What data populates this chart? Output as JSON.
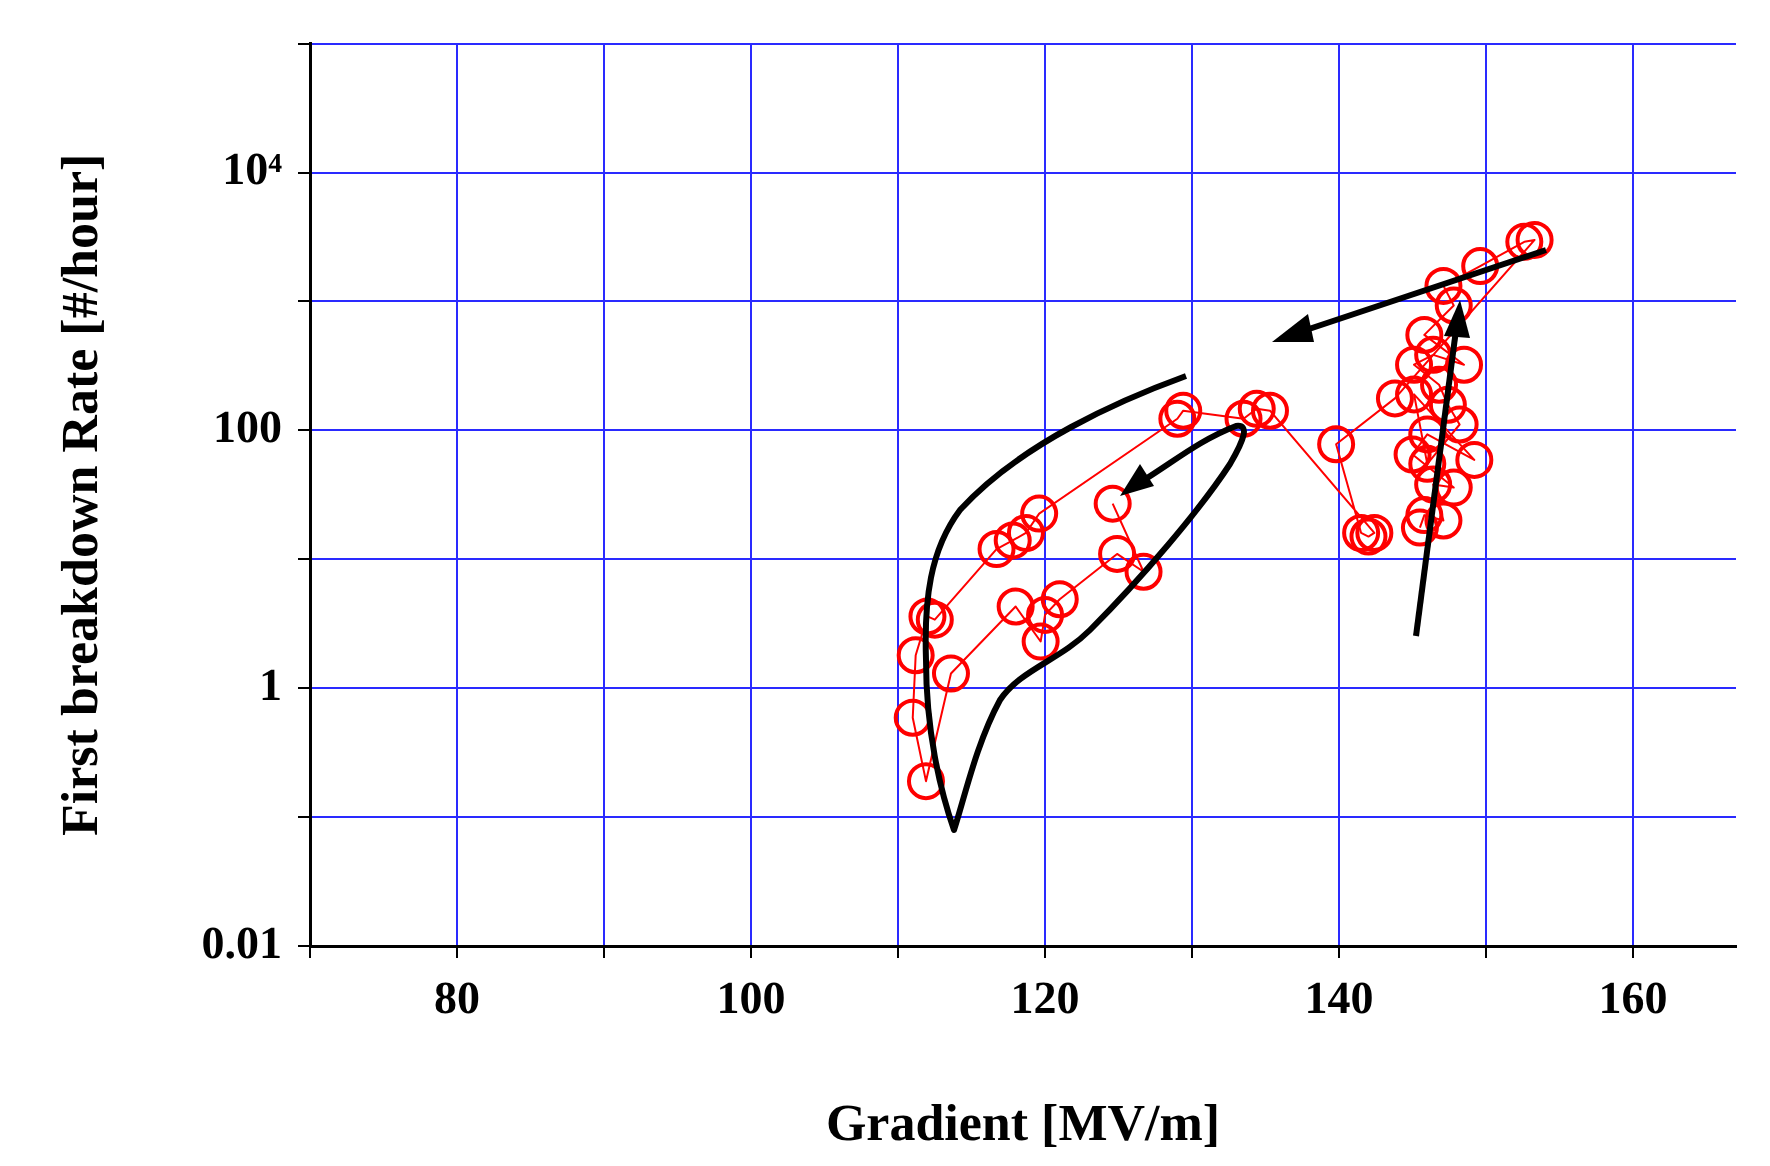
{
  "chart_data": {
    "type": "line",
    "xlabel": "Gradient [MV/m]",
    "ylabel": "First breakdown Rate [#/hour]",
    "xlim": [
      70,
      167
    ],
    "ylim": [
      0.01,
      100000
    ],
    "log": "y",
    "grid": true,
    "legend": false,
    "marker": "circle",
    "line_style": "solid",
    "xticks": [
      {
        "value": 70,
        "label": null
      },
      80,
      {
        "value": 90,
        "label": null
      },
      100,
      {
        "value": 110,
        "label": null
      },
      120,
      {
        "value": 130,
        "label": null
      },
      140,
      {
        "value": 150,
        "label": null
      },
      160
    ],
    "yticks": [
      0.01,
      {
        "value": 0.1,
        "label": null
      },
      1,
      {
        "value": 10,
        "label": null
      },
      100,
      {
        "value": 1000,
        "label": null
      },
      {
        "value": 10000,
        "label": "10⁴"
      },
      {
        "value": 100000,
        "label": null
      }
    ],
    "series": [
      {
        "color": "#ff0000",
        "x": [
          145.5,
          145.8,
          147.1,
          146.4,
          147.8,
          145,
          146,
          149.2,
          145.1,
          146,
          148.2,
          147.4,
          146.8,
          145.1,
          146.4,
          148.5,
          145.8,
          147.8,
          147.1,
          149.6,
          152.6,
          153.3,
          143.8,
          139.8,
          141.5,
          142,
          142.4,
          135.3,
          134.4,
          133.5,
          129.4,
          129,
          119.6,
          118.7,
          117.8,
          116.7,
          112.5,
          112,
          111.2,
          111,
          111.9,
          113.6,
          118,
          119.7,
          120,
          121,
          124.9,
          126.7,
          124.6
        ],
        "values": [
          17.6,
          22,
          20,
          38,
          36,
          65,
          93,
          59,
          190,
          55,
          111,
          158,
          226,
          323,
          385,
          323,
          550,
          930,
          1320,
          1880,
          2900,
          3000,
          177,
          78,
          16,
          15,
          16,
          142,
          147,
          123,
          142,
          123,
          22.6,
          16,
          14,
          12,
          3.4,
          3.6,
          1.8,
          0.59,
          0.19,
          1.3,
          4.3,
          2.3,
          3.7,
          4.9,
          11,
          8,
          27
        ]
      }
    ]
  }
}
